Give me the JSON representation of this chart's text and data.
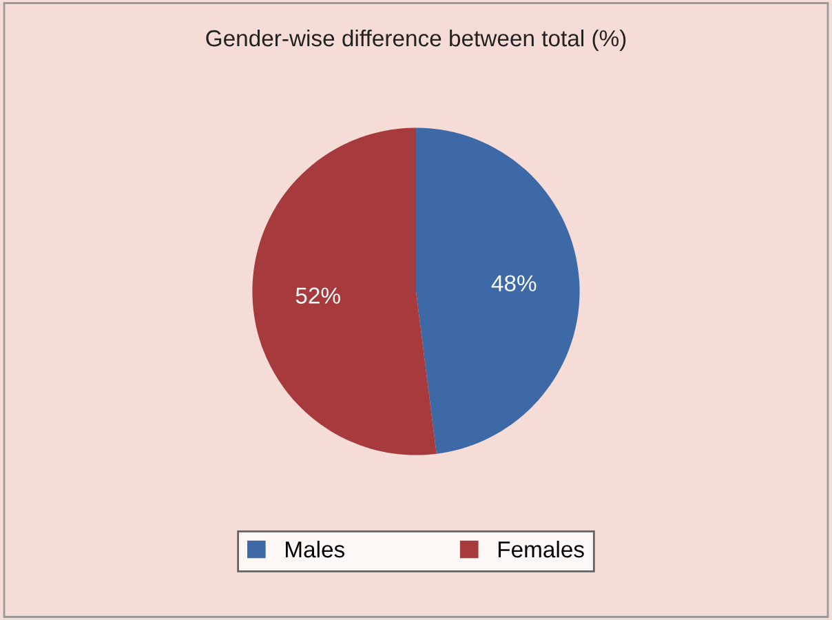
{
  "chart_data": {
    "type": "pie",
    "title": "Gender-wise difference between total (%)",
    "categories": [
      "Males",
      "Females"
    ],
    "values": [
      48,
      52
    ],
    "colors": [
      "#3d6aa6",
      "#a63a3c"
    ],
    "value_labels": [
      "48%",
      "52%"
    ],
    "legend": "bottom"
  }
}
